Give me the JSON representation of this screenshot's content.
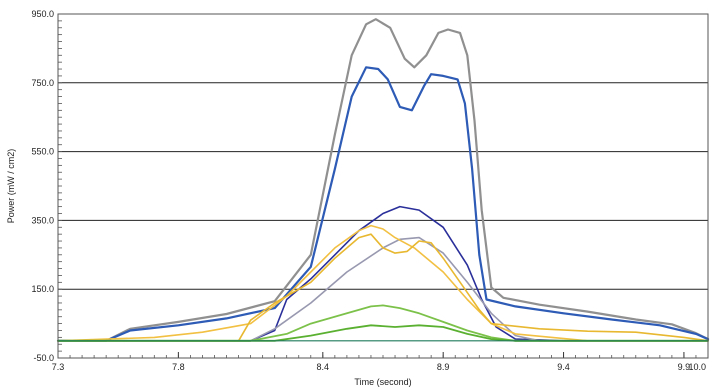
{
  "chart_data": {
    "type": "line",
    "title": "",
    "xlabel": "Time (second)",
    "ylabel": "Power (mW / cm2)",
    "xlim": [
      7.3,
      10.0
    ],
    "ylim": [
      -50,
      950
    ],
    "x_ticks": [
      7.3,
      7.8,
      8.4,
      8.9,
      9.4,
      9.9,
      10.0
    ],
    "x_tick_labels": [
      "7.3",
      "7.8",
      "8.4",
      "8.9",
      "9.4",
      "9.9",
      "10.0"
    ],
    "y_ticks": [
      -50,
      150,
      350,
      550,
      750,
      950
    ],
    "y_tick_labels": [
      "-50.0",
      "150.0",
      "350.0",
      "550.0",
      "750.0",
      "950.0"
    ],
    "grid": "horizontal",
    "series": [
      {
        "color": "#909090",
        "width": 2.2,
        "points": [
          [
            7.3,
            0
          ],
          [
            7.5,
            0
          ],
          [
            7.6,
            35
          ],
          [
            7.8,
            55
          ],
          [
            8.0,
            78
          ],
          [
            8.2,
            115
          ],
          [
            8.35,
            250
          ],
          [
            8.45,
            600
          ],
          [
            8.52,
            830
          ],
          [
            8.58,
            920
          ],
          [
            8.62,
            935
          ],
          [
            8.68,
            910
          ],
          [
            8.74,
            820
          ],
          [
            8.78,
            795
          ],
          [
            8.83,
            830
          ],
          [
            8.88,
            895
          ],
          [
            8.92,
            905
          ],
          [
            8.97,
            895
          ],
          [
            9.0,
            830
          ],
          [
            9.03,
            640
          ],
          [
            9.06,
            380
          ],
          [
            9.1,
            155
          ],
          [
            9.15,
            125
          ],
          [
            9.3,
            105
          ],
          [
            9.5,
            85
          ],
          [
            9.7,
            62
          ],
          [
            9.85,
            48
          ],
          [
            9.95,
            22
          ],
          [
            10.0,
            5
          ]
        ]
      },
      {
        "color": "#2d5bb5",
        "width": 2.2,
        "points": [
          [
            7.3,
            0
          ],
          [
            7.5,
            0
          ],
          [
            7.6,
            30
          ],
          [
            7.8,
            45
          ],
          [
            8.0,
            65
          ],
          [
            8.2,
            95
          ],
          [
            8.35,
            215
          ],
          [
            8.45,
            500
          ],
          [
            8.52,
            710
          ],
          [
            8.58,
            795
          ],
          [
            8.63,
            790
          ],
          [
            8.67,
            760
          ],
          [
            8.72,
            680
          ],
          [
            8.77,
            670
          ],
          [
            8.82,
            740
          ],
          [
            8.85,
            775
          ],
          [
            8.9,
            770
          ],
          [
            8.96,
            760
          ],
          [
            8.99,
            690
          ],
          [
            9.02,
            500
          ],
          [
            9.05,
            250
          ],
          [
            9.08,
            120
          ],
          [
            9.2,
            100
          ],
          [
            9.4,
            80
          ],
          [
            9.6,
            62
          ],
          [
            9.8,
            45
          ],
          [
            9.95,
            20
          ],
          [
            10.0,
            5
          ]
        ]
      },
      {
        "color": "#2a2f9a",
        "width": 1.6,
        "points": [
          [
            7.3,
            0
          ],
          [
            8.1,
            0
          ],
          [
            8.2,
            30
          ],
          [
            8.25,
            120
          ],
          [
            8.35,
            180
          ],
          [
            8.45,
            250
          ],
          [
            8.55,
            320
          ],
          [
            8.65,
            370
          ],
          [
            8.72,
            390
          ],
          [
            8.8,
            380
          ],
          [
            8.9,
            330
          ],
          [
            9.0,
            220
          ],
          [
            9.06,
            120
          ],
          [
            9.12,
            40
          ],
          [
            9.2,
            5
          ],
          [
            9.4,
            0
          ],
          [
            10.0,
            0
          ]
        ]
      },
      {
        "color": "#9898b0",
        "width": 1.6,
        "points": [
          [
            7.3,
            0
          ],
          [
            8.1,
            0
          ],
          [
            8.2,
            35
          ],
          [
            8.35,
            110
          ],
          [
            8.5,
            200
          ],
          [
            8.65,
            270
          ],
          [
            8.72,
            295
          ],
          [
            8.8,
            300
          ],
          [
            8.9,
            255
          ],
          [
            9.0,
            170
          ],
          [
            9.1,
            80
          ],
          [
            9.2,
            15
          ],
          [
            9.3,
            0
          ],
          [
            10.0,
            0
          ]
        ]
      },
      {
        "color": "#f2c042",
        "width": 1.6,
        "points": [
          [
            7.3,
            0
          ],
          [
            7.7,
            10
          ],
          [
            7.9,
            25
          ],
          [
            8.1,
            50
          ],
          [
            8.25,
            130
          ],
          [
            8.35,
            200
          ],
          [
            8.45,
            270
          ],
          [
            8.55,
            320
          ],
          [
            8.6,
            335
          ],
          [
            8.65,
            325
          ],
          [
            8.7,
            300
          ],
          [
            8.78,
            270
          ],
          [
            8.9,
            200
          ],
          [
            9.0,
            120
          ],
          [
            9.1,
            50
          ],
          [
            9.2,
            20
          ],
          [
            9.5,
            0
          ],
          [
            10.0,
            0
          ]
        ]
      },
      {
        "color": "#e8b830",
        "width": 1.6,
        "points": [
          [
            7.3,
            0
          ],
          [
            8.05,
            0
          ],
          [
            8.1,
            60
          ],
          [
            8.2,
            110
          ],
          [
            8.35,
            170
          ],
          [
            8.45,
            240
          ],
          [
            8.55,
            300
          ],
          [
            8.6,
            310
          ],
          [
            8.65,
            270
          ],
          [
            8.7,
            255
          ],
          [
            8.75,
            260
          ],
          [
            8.8,
            290
          ],
          [
            8.85,
            285
          ],
          [
            8.9,
            240
          ],
          [
            9.0,
            140
          ],
          [
            9.05,
            90
          ],
          [
            9.1,
            50
          ],
          [
            9.3,
            35
          ],
          [
            9.5,
            28
          ],
          [
            9.7,
            25
          ],
          [
            9.9,
            10
          ],
          [
            10.0,
            0
          ]
        ]
      },
      {
        "color": "#7cc24a",
        "width": 1.8,
        "points": [
          [
            7.3,
            0
          ],
          [
            8.1,
            0
          ],
          [
            8.25,
            20
          ],
          [
            8.35,
            50
          ],
          [
            8.5,
            80
          ],
          [
            8.6,
            100
          ],
          [
            8.65,
            103
          ],
          [
            8.72,
            95
          ],
          [
            8.8,
            80
          ],
          [
            8.9,
            55
          ],
          [
            9.0,
            30
          ],
          [
            9.1,
            10
          ],
          [
            9.2,
            0
          ],
          [
            10.0,
            0
          ]
        ]
      },
      {
        "color": "#5ab030",
        "width": 1.8,
        "points": [
          [
            7.3,
            0
          ],
          [
            8.2,
            0
          ],
          [
            8.35,
            15
          ],
          [
            8.5,
            35
          ],
          [
            8.6,
            45
          ],
          [
            8.7,
            40
          ],
          [
            8.8,
            45
          ],
          [
            8.9,
            40
          ],
          [
            9.0,
            20
          ],
          [
            9.1,
            5
          ],
          [
            9.2,
            0
          ],
          [
            10.0,
            0
          ]
        ]
      },
      {
        "color": "#1f7a5a",
        "width": 1.2,
        "points": [
          [
            7.3,
            0
          ],
          [
            10.0,
            0
          ]
        ]
      }
    ]
  }
}
